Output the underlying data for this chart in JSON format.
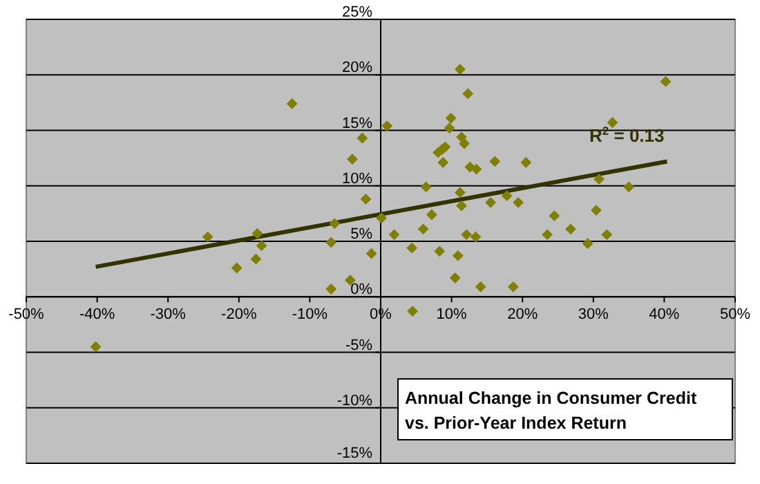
{
  "chart_data": {
    "type": "scatter",
    "title": [
      "Annual Change in Consumer Credit",
      "vs. Prior-Year Index Return"
    ],
    "xlim": [
      -50,
      50
    ],
    "ylim": [
      -15,
      25
    ],
    "xticks": [
      {
        "value": -50,
        "label": "-50%"
      },
      {
        "value": -40,
        "label": "-40%"
      },
      {
        "value": -30,
        "label": "-30%"
      },
      {
        "value": -20,
        "label": "-20%"
      },
      {
        "value": -10,
        "label": "-10%"
      },
      {
        "value": 0,
        "label": "0%"
      },
      {
        "value": 10,
        "label": "10%"
      },
      {
        "value": 20,
        "label": "20%"
      },
      {
        "value": 30,
        "label": "30%"
      },
      {
        "value": 40,
        "label": "40%"
      },
      {
        "value": 50,
        "label": "50%"
      }
    ],
    "yticks": [
      {
        "value": -15,
        "label": "-15%"
      },
      {
        "value": -10,
        "label": "-10%"
      },
      {
        "value": -5,
        "label": "-5%"
      },
      {
        "value": 0,
        "label": "0%"
      },
      {
        "value": 5,
        "label": "5%"
      },
      {
        "value": 10,
        "label": "10%"
      },
      {
        "value": 15,
        "label": "15%"
      },
      {
        "value": 20,
        "label": "20%"
      },
      {
        "value": 25,
        "label": "25%"
      }
    ],
    "grid": "y",
    "series": [
      {
        "color": "#808000",
        "marker": "diamond",
        "x": [
          -40.2,
          -24.4,
          -20.3,
          -17.6,
          -17.4,
          -16.8,
          -12.5,
          -7.0,
          -6.5,
          -7.0,
          -4.3,
          -4.0,
          -2.6,
          -2.1,
          -1.3,
          0.1,
          0.9,
          1.9,
          4.5,
          4.4,
          6.0,
          6.4,
          7.2,
          8.3,
          8.1,
          8.7,
          9.1,
          8.8,
          9.7,
          9.9,
          10.5,
          10.9,
          11.2,
          11.2,
          11.4,
          11.4,
          11.8,
          12.3,
          12.1,
          12.6,
          13.5,
          13.4,
          14.1,
          15.5,
          16.1,
          17.8,
          18.7,
          19.4,
          20.5,
          23.5,
          24.5,
          26.8,
          29.2,
          30.4,
          30.8,
          31.9,
          32.7,
          35.0,
          40.2
        ],
        "values": [
          -4.5,
          5.4,
          2.6,
          3.4,
          5.7,
          4.6,
          17.4,
          4.9,
          6.6,
          0.7,
          1.5,
          12.4,
          14.3,
          8.8,
          3.9,
          7.1,
          15.4,
          5.6,
          -1.3,
          4.4,
          6.1,
          9.9,
          7.4,
          4.1,
          13.0,
          13.3,
          13.5,
          12.1,
          15.2,
          16.1,
          1.7,
          3.7,
          20.5,
          9.4,
          8.2,
          14.4,
          13.8,
          18.3,
          5.6,
          11.7,
          11.5,
          5.4,
          0.9,
          8.5,
          12.2,
          9.1,
          0.9,
          8.5,
          12.1,
          5.6,
          7.3,
          6.1,
          4.8,
          7.8,
          10.6,
          5.6,
          15.7,
          9.9,
          19.4
        ]
      },
      {
        "type": "line",
        "color": "#333300",
        "marker": "none",
        "line_style": "solid",
        "x": [
          -40.2,
          40.4
        ],
        "values": [
          2.7,
          12.2
        ]
      }
    ],
    "annotations": [
      {
        "text": "R$^{2}$ = 0.13",
        "x": 40.4,
        "y": 12.2
      }
    ]
  }
}
